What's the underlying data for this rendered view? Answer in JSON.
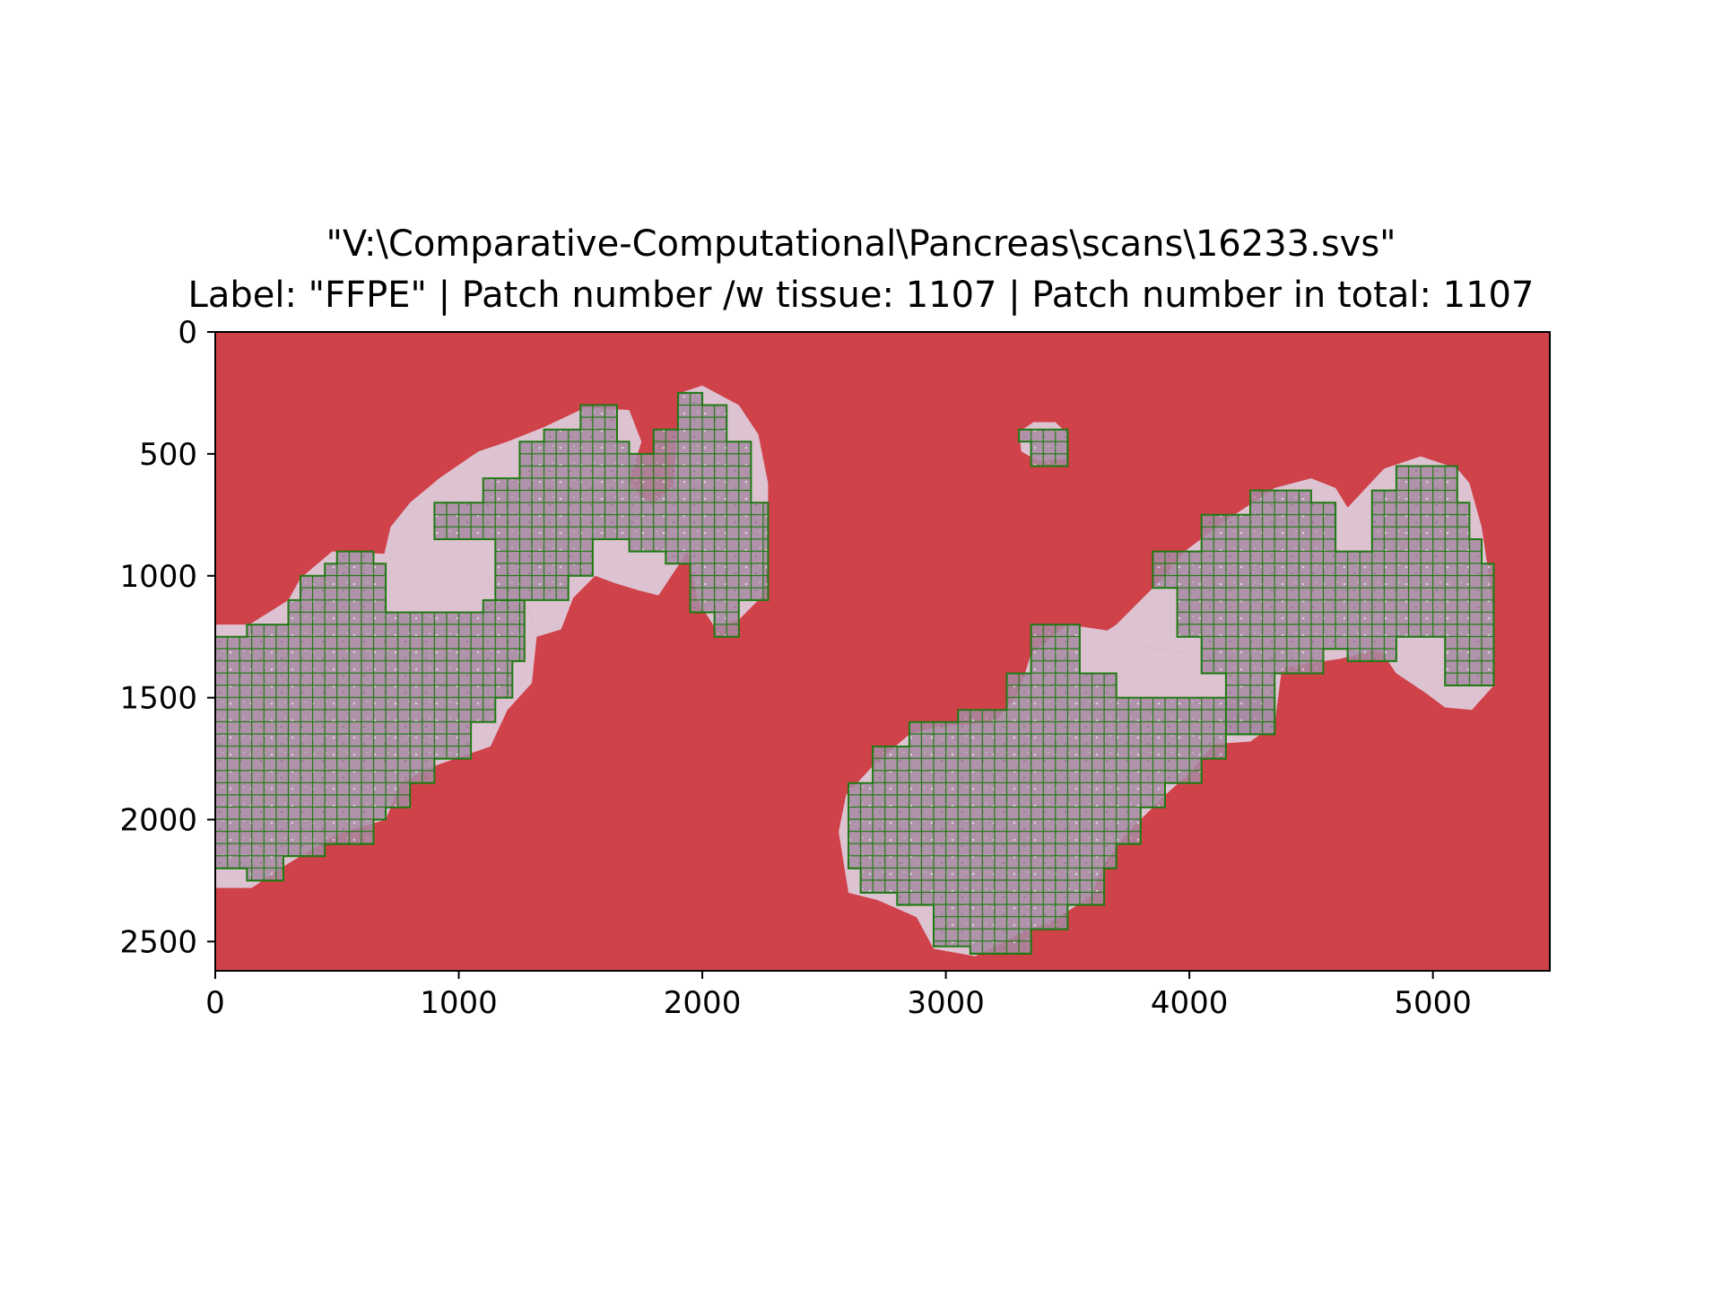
{
  "chart_data": {
    "type": "heatmap",
    "title_line1": "\"V:\\Comparative-Computational\\Pancreas\\scans\\16233.svs\"",
    "title_line2": "Label: \"FFPE\" | Patch number /w tissue: 1107 | Patch number in total: 1107",
    "xlabel": "",
    "ylabel": "",
    "xlim": [
      0,
      5480
    ],
    "ylim": [
      2620,
      0
    ],
    "x_ticks": [
      0,
      1000,
      2000,
      3000,
      4000,
      5000
    ],
    "y_ticks": [
      0,
      500,
      1000,
      1500,
      2000,
      2500
    ],
    "grid": false,
    "patch_size": 50,
    "patch_count_with_tissue": 1107,
    "patch_count_total": 1107,
    "colors": {
      "background": "#d0424a",
      "tissue": "#a88aa4",
      "tissue_light": "#ddc3d2",
      "patch_edge": "#1f7a12",
      "axes": "#000000"
    },
    "tissue_regions": [
      {
        "name": "left-lower-lobe",
        "points": [
          [
            0,
            1200
          ],
          [
            140,
            1200
          ],
          [
            300,
            1100
          ],
          [
            350,
            1010
          ],
          [
            480,
            900
          ],
          [
            700,
            910
          ],
          [
            800,
            1000
          ],
          [
            900,
            1010
          ],
          [
            1100,
            1000
          ],
          [
            1150,
            1050
          ],
          [
            1270,
            1100
          ],
          [
            1320,
            1250
          ],
          [
            1300,
            1440
          ],
          [
            1200,
            1550
          ],
          [
            1130,
            1700
          ],
          [
            900,
            1780
          ],
          [
            760,
            1850
          ],
          [
            700,
            2000
          ],
          [
            500,
            2060
          ],
          [
            300,
            2180
          ],
          [
            150,
            2280
          ],
          [
            0,
            2280
          ]
        ]
      },
      {
        "name": "left-upper-lobe",
        "points": [
          [
            650,
            1100
          ],
          [
            720,
            800
          ],
          [
            800,
            700
          ],
          [
            920,
            600
          ],
          [
            1080,
            490
          ],
          [
            1200,
            450
          ],
          [
            1350,
            390
          ],
          [
            1520,
            310
          ],
          [
            1700,
            320
          ],
          [
            1750,
            450
          ],
          [
            1700,
            610
          ],
          [
            1750,
            680
          ],
          [
            1800,
            700
          ],
          [
            1880,
            630
          ],
          [
            1910,
            250
          ],
          [
            2000,
            220
          ],
          [
            2150,
            300
          ],
          [
            2230,
            420
          ],
          [
            2270,
            620
          ],
          [
            2270,
            930
          ],
          [
            2250,
            1080
          ],
          [
            2150,
            1180
          ],
          [
            2050,
            1210
          ],
          [
            1980,
            1100
          ],
          [
            1940,
            900
          ],
          [
            1880,
            990
          ],
          [
            1820,
            1080
          ],
          [
            1740,
            1060
          ],
          [
            1640,
            1030
          ],
          [
            1560,
            1000
          ],
          [
            1470,
            1090
          ],
          [
            1420,
            1220
          ],
          [
            1320,
            1250
          ],
          [
            1270,
            1100
          ],
          [
            1150,
            1050
          ],
          [
            1100,
            1000
          ]
        ]
      },
      {
        "name": "small-island",
        "points": [
          [
            3300,
            410
          ],
          [
            3360,
            370
          ],
          [
            3450,
            370
          ],
          [
            3500,
            420
          ],
          [
            3500,
            520
          ],
          [
            3380,
            530
          ],
          [
            3310,
            490
          ]
        ]
      },
      {
        "name": "right-lower-lobe",
        "points": [
          [
            2560,
            2050
          ],
          [
            2590,
            1900
          ],
          [
            2700,
            1780
          ],
          [
            2850,
            1650
          ],
          [
            2960,
            1620
          ],
          [
            3200,
            1600
          ],
          [
            3300,
            1480
          ],
          [
            3350,
            1320
          ],
          [
            3500,
            1200
          ],
          [
            3700,
            1230
          ],
          [
            3820,
            1290
          ],
          [
            4000,
            1320
          ],
          [
            4150,
            1400
          ],
          [
            4250,
            1500
          ],
          [
            4350,
            1610
          ],
          [
            4250,
            1680
          ],
          [
            4100,
            1690
          ],
          [
            4000,
            1810
          ],
          [
            3900,
            1900
          ],
          [
            3740,
            2060
          ],
          [
            3650,
            2180
          ],
          [
            3600,
            2310
          ],
          [
            3450,
            2410
          ],
          [
            3300,
            2470
          ],
          [
            3120,
            2560
          ],
          [
            2950,
            2530
          ],
          [
            2880,
            2400
          ],
          [
            2720,
            2330
          ],
          [
            2600,
            2300
          ]
        ]
      },
      {
        "name": "right-upper-lobe",
        "points": [
          [
            3550,
            1300
          ],
          [
            3700,
            1200
          ],
          [
            3900,
            1000
          ],
          [
            3980,
            900
          ],
          [
            4140,
            780
          ],
          [
            4350,
            640
          ],
          [
            4500,
            600
          ],
          [
            4600,
            640
          ],
          [
            4650,
            720
          ],
          [
            4800,
            560
          ],
          [
            4950,
            510
          ],
          [
            5100,
            560
          ],
          [
            5150,
            620
          ],
          [
            5200,
            800
          ],
          [
            5230,
            1000
          ],
          [
            5250,
            1200
          ],
          [
            5250,
            1450
          ],
          [
            5160,
            1550
          ],
          [
            5050,
            1540
          ],
          [
            4970,
            1480
          ],
          [
            4850,
            1400
          ],
          [
            4780,
            1300
          ],
          [
            4620,
            1340
          ],
          [
            4480,
            1360
          ],
          [
            4380,
            1380
          ],
          [
            4350,
            1610
          ],
          [
            4250,
            1500
          ],
          [
            4150,
            1400
          ],
          [
            4000,
            1320
          ],
          [
            3820,
            1290
          ]
        ]
      }
    ],
    "patch_regions": [
      {
        "name": "left-lower-patches",
        "points": [
          [
            0,
            1250
          ],
          [
            130,
            1250
          ],
          [
            130,
            1200
          ],
          [
            300,
            1200
          ],
          [
            300,
            1100
          ],
          [
            350,
            1100
          ],
          [
            350,
            1000
          ],
          [
            450,
            1000
          ],
          [
            450,
            950
          ],
          [
            500,
            950
          ],
          [
            500,
            900
          ],
          [
            650,
            900
          ],
          [
            650,
            950
          ],
          [
            700,
            950
          ],
          [
            700,
            1150
          ],
          [
            1100,
            1150
          ],
          [
            1100,
            1100
          ],
          [
            1270,
            1100
          ],
          [
            1270,
            1350
          ],
          [
            1220,
            1350
          ],
          [
            1220,
            1500
          ],
          [
            1150,
            1500
          ],
          [
            1150,
            1600
          ],
          [
            1050,
            1600
          ],
          [
            1050,
            1750
          ],
          [
            900,
            1750
          ],
          [
            900,
            1850
          ],
          [
            800,
            1850
          ],
          [
            800,
            1950
          ],
          [
            700,
            1950
          ],
          [
            700,
            2000
          ],
          [
            650,
            2000
          ],
          [
            650,
            2100
          ],
          [
            450,
            2100
          ],
          [
            450,
            2150
          ],
          [
            280,
            2150
          ],
          [
            280,
            2250
          ],
          [
            130,
            2250
          ],
          [
            130,
            2200
          ],
          [
            0,
            2200
          ]
        ]
      },
      {
        "name": "left-upper-patches",
        "points": [
          [
            900,
            850
          ],
          [
            900,
            700
          ],
          [
            1100,
            700
          ],
          [
            1100,
            600
          ],
          [
            1250,
            600
          ],
          [
            1250,
            450
          ],
          [
            1350,
            450
          ],
          [
            1350,
            400
          ],
          [
            1500,
            400
          ],
          [
            1500,
            300
          ],
          [
            1650,
            300
          ],
          [
            1650,
            450
          ],
          [
            1700,
            450
          ],
          [
            1700,
            500
          ],
          [
            1800,
            500
          ],
          [
            1800,
            400
          ],
          [
            1900,
            400
          ],
          [
            1900,
            250
          ],
          [
            2000,
            250
          ],
          [
            2000,
            300
          ],
          [
            2100,
            300
          ],
          [
            2100,
            450
          ],
          [
            2200,
            450
          ],
          [
            2200,
            700
          ],
          [
            2270,
            700
          ],
          [
            2270,
            1100
          ],
          [
            2150,
            1100
          ],
          [
            2150,
            1250
          ],
          [
            2050,
            1250
          ],
          [
            2050,
            1150
          ],
          [
            1950,
            1150
          ],
          [
            1950,
            950
          ],
          [
            1850,
            950
          ],
          [
            1850,
            900
          ],
          [
            1700,
            900
          ],
          [
            1700,
            850
          ],
          [
            1550,
            850
          ],
          [
            1550,
            1000
          ],
          [
            1450,
            1000
          ],
          [
            1450,
            1100
          ],
          [
            1150,
            1100
          ],
          [
            1150,
            850
          ]
        ]
      },
      {
        "name": "island-patches",
        "points": [
          [
            3300,
            400
          ],
          [
            3500,
            400
          ],
          [
            3500,
            550
          ],
          [
            3350,
            550
          ],
          [
            3350,
            450
          ],
          [
            3300,
            450
          ]
        ]
      },
      {
        "name": "right-lower-patches",
        "points": [
          [
            2600,
            1950
          ],
          [
            2600,
            1850
          ],
          [
            2700,
            1850
          ],
          [
            2700,
            1700
          ],
          [
            2850,
            1700
          ],
          [
            2850,
            1600
          ],
          [
            3050,
            1600
          ],
          [
            3050,
            1550
          ],
          [
            3250,
            1550
          ],
          [
            3250,
            1400
          ],
          [
            3350,
            1400
          ],
          [
            3350,
            1200
          ],
          [
            3550,
            1200
          ],
          [
            3550,
            1400
          ],
          [
            3700,
            1400
          ],
          [
            3700,
            1500
          ],
          [
            4350,
            1500
          ],
          [
            4350,
            1650
          ],
          [
            4150,
            1650
          ],
          [
            4150,
            1750
          ],
          [
            4050,
            1750
          ],
          [
            4050,
            1850
          ],
          [
            3900,
            1850
          ],
          [
            3900,
            1950
          ],
          [
            3800,
            1950
          ],
          [
            3800,
            2100
          ],
          [
            3700,
            2100
          ],
          [
            3700,
            2200
          ],
          [
            3650,
            2200
          ],
          [
            3650,
            2350
          ],
          [
            3500,
            2350
          ],
          [
            3500,
            2450
          ],
          [
            3350,
            2450
          ],
          [
            3350,
            2550
          ],
          [
            3100,
            2550
          ],
          [
            3100,
            2520
          ],
          [
            2950,
            2520
          ],
          [
            2950,
            2350
          ],
          [
            2800,
            2350
          ],
          [
            2800,
            2300
          ],
          [
            2650,
            2300
          ],
          [
            2650,
            2200
          ],
          [
            2600,
            2200
          ]
        ]
      },
      {
        "name": "right-upper-patches",
        "points": [
          [
            3850,
            1050
          ],
          [
            3850,
            900
          ],
          [
            4050,
            900
          ],
          [
            4050,
            750
          ],
          [
            4250,
            750
          ],
          [
            4250,
            650
          ],
          [
            4500,
            650
          ],
          [
            4500,
            700
          ],
          [
            4600,
            700
          ],
          [
            4600,
            900
          ],
          [
            4750,
            900
          ],
          [
            4750,
            650
          ],
          [
            4850,
            650
          ],
          [
            4850,
            550
          ],
          [
            5100,
            550
          ],
          [
            5100,
            700
          ],
          [
            5150,
            700
          ],
          [
            5150,
            850
          ],
          [
            5200,
            850
          ],
          [
            5200,
            950
          ],
          [
            5250,
            950
          ],
          [
            5250,
            1450
          ],
          [
            5050,
            1450
          ],
          [
            5050,
            1250
          ],
          [
            4850,
            1250
          ],
          [
            4850,
            1350
          ],
          [
            4650,
            1350
          ],
          [
            4650,
            1300
          ],
          [
            4550,
            1300
          ],
          [
            4550,
            1400
          ],
          [
            4350,
            1400
          ],
          [
            4350,
            1650
          ],
          [
            4150,
            1650
          ],
          [
            4150,
            1400
          ],
          [
            4050,
            1400
          ],
          [
            4050,
            1250
          ],
          [
            3950,
            1250
          ],
          [
            3950,
            1050
          ]
        ]
      }
    ]
  }
}
